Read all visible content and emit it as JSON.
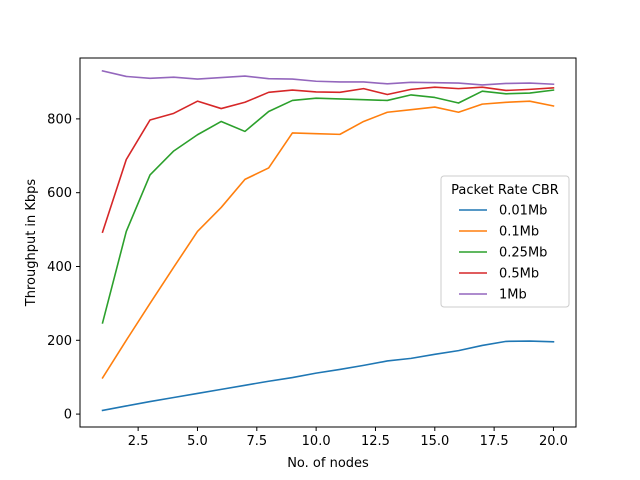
{
  "chart_data": {
    "type": "line",
    "title": "",
    "xlabel": "No. of nodes",
    "ylabel": "Throughput in Kbps",
    "xlim": [
      0.05,
      20.95
    ],
    "ylim": [
      -35,
      965
    ],
    "xticks": [
      2.5,
      5.0,
      7.5,
      10.0,
      12.5,
      15.0,
      17.5,
      20.0
    ],
    "xtick_labels": [
      "2.5",
      "5.0",
      "7.5",
      "10.0",
      "12.5",
      "15.0",
      "17.5",
      "20.0"
    ],
    "yticks": [
      0,
      200,
      400,
      600,
      800
    ],
    "ytick_labels": [
      "0",
      "200",
      "400",
      "600",
      "800"
    ],
    "grid": false,
    "legend": {
      "title": "Packet Rate CBR",
      "placement": "center-right"
    },
    "x": [
      1,
      2,
      3,
      4,
      5,
      6,
      7,
      8,
      9,
      10,
      11,
      12,
      13,
      14,
      15,
      16,
      17,
      18,
      19,
      20
    ],
    "series": [
      {
        "name": "0.01Mb",
        "color": "#1f77b4",
        "values": [
          10,
          22,
          34,
          45,
          56,
          67,
          78,
          89,
          99,
          111,
          121,
          132,
          144,
          151,
          162,
          172,
          186,
          197,
          198,
          196
        ]
      },
      {
        "name": "0.1Mb",
        "color": "#ff7f0e",
        "values": [
          98,
          200,
          300,
          398,
          495,
          560,
          636,
          667,
          762,
          760,
          758,
          793,
          818,
          825,
          832,
          818,
          840,
          845,
          848,
          835
        ]
      },
      {
        "name": "0.25Mb",
        "color": "#2ca02c",
        "values": [
          247,
          495,
          648,
          713,
          757,
          793,
          766,
          820,
          850,
          856,
          854,
          852,
          850,
          865,
          858,
          843,
          875,
          868,
          870,
          878
        ]
      },
      {
        "name": "0.5Mb",
        "color": "#d62728",
        "values": [
          493,
          690,
          797,
          815,
          848,
          828,
          845,
          872,
          878,
          873,
          872,
          882,
          866,
          880,
          886,
          882,
          886,
          877,
          880,
          884
        ]
      },
      {
        "name": "1Mb",
        "color": "#9467bd",
        "values": [
          930,
          915,
          910,
          913,
          908,
          912,
          916,
          909,
          908,
          902,
          900,
          900,
          895,
          899,
          898,
          897,
          892,
          896,
          897,
          894
        ]
      }
    ]
  }
}
